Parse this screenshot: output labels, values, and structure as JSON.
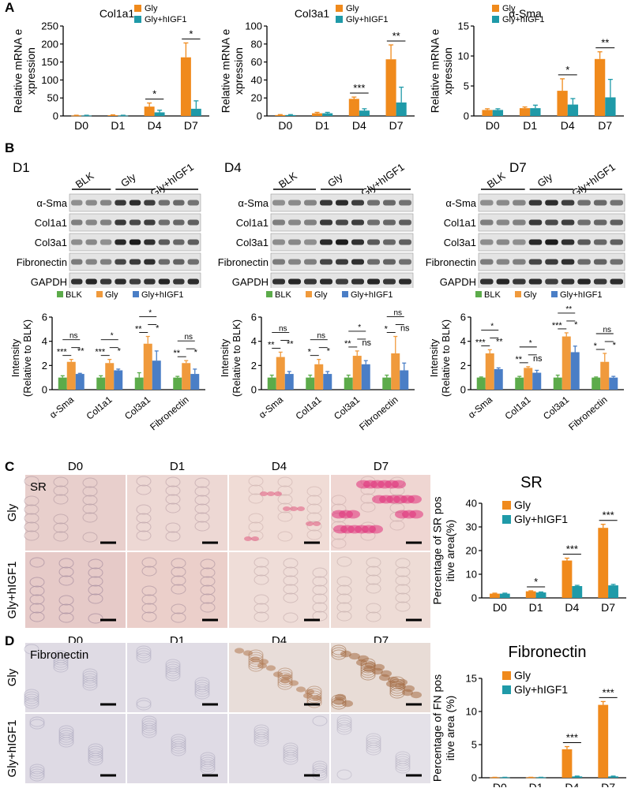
{
  "colors": {
    "gly": "#f08a1c",
    "hIGF1": "#1f9aa8",
    "blk": "#5cab4a",
    "gly_b": "#f09a3c",
    "hIGF1_b": "#4a7ec6"
  },
  "panel_letters": [
    "A",
    "B",
    "C",
    "D"
  ],
  "chart_data": [
    {
      "id": "a1",
      "type": "bar",
      "title": "Col1a1",
      "ylabel": "Relative mRNA expression",
      "categories": [
        "D0",
        "D1",
        "D4",
        "D7"
      ],
      "ylim": [
        0,
        250
      ],
      "yticks": [
        "0",
        "50",
        "100",
        "150",
        "200",
        "250"
      ],
      "series": [
        {
          "name": "Gly",
          "values": [
            1,
            2,
            26,
            163
          ],
          "err": [
            1,
            1,
            10,
            40
          ]
        },
        {
          "name": "Gly+hIGF1",
          "values": [
            1,
            1,
            10,
            20
          ],
          "err": [
            1,
            1,
            6,
            22
          ]
        }
      ],
      "sig": [
        {
          "cat": 2,
          "label": "*"
        },
        {
          "cat": 3,
          "label": "*"
        }
      ]
    },
    {
      "id": "a2",
      "type": "bar",
      "title": "Col3a1",
      "ylabel": "Relative mRNA expression",
      "categories": [
        "D0",
        "D1",
        "D4",
        "D7"
      ],
      "ylim": [
        0,
        100
      ],
      "yticks": [
        "0",
        "20",
        "40",
        "60",
        "80",
        "100"
      ],
      "series": [
        {
          "name": "Gly",
          "values": [
            1,
            3,
            19,
            63
          ],
          "err": [
            0.5,
            1,
            2,
            16
          ]
        },
        {
          "name": "Gly+hIGF1",
          "values": [
            1,
            3,
            6,
            15
          ],
          "err": [
            0.5,
            1,
            2,
            17
          ]
        }
      ],
      "sig": [
        {
          "cat": 2,
          "label": "***"
        },
        {
          "cat": 3,
          "label": "**"
        }
      ]
    },
    {
      "id": "a3",
      "type": "bar",
      "title": "α-Sma",
      "ylabel": "Relative mRNA expression",
      "categories": [
        "D0",
        "D1",
        "D4",
        "D7"
      ],
      "ylim": [
        0,
        15
      ],
      "yticks": [
        "0",
        "5",
        "10",
        "15"
      ],
      "series": [
        {
          "name": "Gly",
          "values": [
            1,
            1.3,
            4.2,
            9.5
          ],
          "err": [
            0.2,
            0.2,
            2,
            1.2
          ]
        },
        {
          "name": "Gly+hIGF1",
          "values": [
            1,
            1.3,
            1.9,
            3.1
          ],
          "err": [
            0.2,
            0.5,
            1,
            3
          ]
        }
      ],
      "sig": [
        {
          "cat": 2,
          "label": "*"
        },
        {
          "cat": 3,
          "label": "**"
        }
      ]
    },
    {
      "id": "b1",
      "type": "bar",
      "ylabel": "Intensity (Relative to BLK)",
      "categories": [
        "α-Sma",
        "Col1a1",
        "Col3a1",
        "Fibronectin"
      ],
      "ylim": [
        0,
        6
      ],
      "yticks": [
        "0",
        "2",
        "4",
        "6"
      ],
      "series": [
        {
          "name": "BLK",
          "values": [
            1,
            1,
            1,
            1
          ],
          "err": [
            0.15,
            0.15,
            0.4,
            0.1
          ]
        },
        {
          "name": "Gly",
          "values": [
            2.3,
            2.2,
            3.8,
            2.2
          ],
          "err": [
            0.2,
            0.3,
            0.6,
            0.2
          ]
        },
        {
          "name": "Gly+hIGF1",
          "values": [
            1.3,
            1.6,
            2.4,
            1.3
          ],
          "err": [
            0.05,
            0.1,
            0.8,
            0.4
          ]
        }
      ],
      "sig_labels": [
        [
          "***",
          "**",
          "ns"
        ],
        [
          "***",
          "*",
          "*"
        ],
        [
          "**",
          "*",
          "*"
        ],
        [
          "**",
          "*",
          "ns"
        ]
      ]
    },
    {
      "id": "b2",
      "type": "bar",
      "ylabel": "Intensity (Relative to BLK)",
      "categories": [
        "α-Sma",
        "Col1a1",
        "Col3a1",
        "Fibronectin"
      ],
      "ylim": [
        0,
        6
      ],
      "yticks": [
        "0",
        "2",
        "4",
        "6"
      ],
      "series": [
        {
          "name": "BLK",
          "values": [
            1,
            1,
            1,
            1
          ],
          "err": [
            0.2,
            0.2,
            0.2,
            0.2
          ]
        },
        {
          "name": "Gly",
          "values": [
            2.7,
            2.1,
            2.8,
            3.0
          ],
          "err": [
            0.4,
            0.4,
            0.4,
            1.4
          ]
        },
        {
          "name": "Gly+hIGF1",
          "values": [
            1.3,
            1.3,
            2.1,
            1.6
          ],
          "err": [
            0.2,
            0.2,
            0.3,
            0.6
          ]
        }
      ],
      "sig_labels": [
        [
          "**",
          "**",
          "ns"
        ],
        [
          "*",
          "*",
          "ns"
        ],
        [
          "**",
          "ns",
          "*"
        ],
        [
          "*",
          "ns",
          "ns"
        ]
      ]
    },
    {
      "id": "b3",
      "type": "bar",
      "ylabel": "Intensity (Relative to BLK)",
      "categories": [
        "α-Sma",
        "Col1a1",
        "Col3a1",
        "Fibronectin"
      ],
      "ylim": [
        0,
        6
      ],
      "yticks": [
        "0",
        "2",
        "4",
        "6"
      ],
      "series": [
        {
          "name": "BLK",
          "values": [
            1,
            1,
            1,
            1
          ],
          "err": [
            0.05,
            0.1,
            0.2,
            0.05
          ]
        },
        {
          "name": "Gly",
          "values": [
            3.0,
            1.8,
            4.4,
            2.3
          ],
          "err": [
            0.3,
            0.1,
            0.3,
            0.7
          ]
        },
        {
          "name": "Gly+hIGF1",
          "values": [
            1.7,
            1.4,
            3.1,
            1.0
          ],
          "err": [
            0.1,
            0.2,
            0.5,
            0.1
          ]
        }
      ],
      "sig_labels": [
        [
          "***",
          "**",
          "*"
        ],
        [
          "**",
          "ns",
          "*"
        ],
        [
          "***",
          "*",
          "**"
        ],
        [
          "*",
          "*",
          "ns"
        ]
      ]
    },
    {
      "id": "c",
      "type": "bar",
      "title": "SR",
      "ylabel": "Percentage of SR positive area(%)",
      "categories": [
        "D0",
        "D1",
        "D4",
        "D7"
      ],
      "ylim": [
        0,
        40
      ],
      "yticks": [
        "0",
        "10",
        "20",
        "30",
        "40"
      ],
      "series": [
        {
          "name": "Gly",
          "values": [
            1.8,
            2.8,
            15.8,
            29.6
          ],
          "err": [
            0.2,
            0.2,
            1,
            1.5
          ]
        },
        {
          "name": "Gly+hIGF1",
          "values": [
            1.8,
            2.3,
            5.0,
            5.3
          ],
          "err": [
            0.2,
            0.2,
            0.3,
            0.4
          ]
        }
      ],
      "sig": [
        {
          "cat": 1,
          "label": "*"
        },
        {
          "cat": 2,
          "label": "***"
        },
        {
          "cat": 3,
          "label": "***"
        }
      ]
    },
    {
      "id": "d",
      "type": "bar",
      "title": "Fibronectin",
      "ylabel": "Percentage of FN positive area (%)",
      "categories": [
        "D0",
        "D1",
        "D4",
        "D7"
      ],
      "ylim": [
        0,
        15
      ],
      "yticks": [
        "0",
        "5",
        "10",
        "15"
      ],
      "series": [
        {
          "name": "Gly",
          "values": [
            0.05,
            0.05,
            4.3,
            11.0
          ],
          "err": [
            0.02,
            0.02,
            0.4,
            0.5
          ]
        },
        {
          "name": "Gly+hIGF1",
          "values": [
            0.05,
            0.05,
            0.2,
            0.2
          ],
          "err": [
            0.02,
            0.02,
            0.05,
            0.05
          ]
        }
      ],
      "sig": [
        {
          "cat": 2,
          "label": "***"
        },
        {
          "cat": 3,
          "label": "***"
        }
      ]
    }
  ],
  "western": [
    {
      "day": "D1",
      "groups": [
        "BLK",
        "Gly",
        "Gly+hIGF1"
      ],
      "rows": [
        "α-Sma",
        "Col1a1",
        "Col3a1",
        "Fibronectin",
        "GAPDH"
      ]
    },
    {
      "day": "D4",
      "groups": [
        "BLK",
        "Gly",
        "Gly+hIGF1"
      ],
      "rows": [
        "α-Sma",
        "Col1a1",
        "Col3a1",
        "Fibronectin",
        "GAPDH"
      ]
    },
    {
      "day": "D7",
      "groups": [
        "BLK",
        "Gly",
        "Gly+hIGF1"
      ],
      "rows": [
        "α-Sma",
        "Col1a1",
        "Col3a1",
        "Fibronectin",
        "GAPDH"
      ]
    }
  ],
  "histo": {
    "days": [
      "D0",
      "D1",
      "D4",
      "D7"
    ],
    "rows": [
      "Gly",
      "Gly+hIGF1"
    ],
    "sr_tag": "SR",
    "fn_tag": "Fibronectin"
  }
}
